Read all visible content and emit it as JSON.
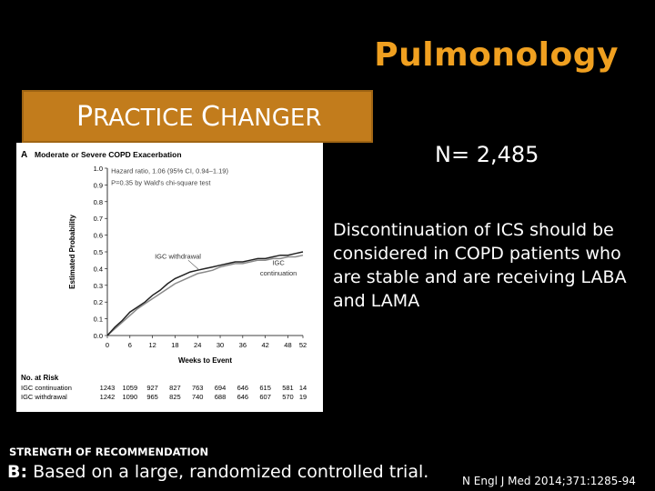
{
  "header": {
    "title": "Pulmonology"
  },
  "banner": {
    "label_initial1": "P",
    "label_rest1": "RACTICE ",
    "label_initial2": "C",
    "label_rest2": "HANGER"
  },
  "sample_size": "N= 2,485",
  "conclusion": "Discontinuation of ICS should be considered in COPD patients who are stable and are receiving LABA and LAMA",
  "recommendation": {
    "heading": "STRENGTH OF RECOMMENDATION",
    "grade": "B:",
    "text": " Based on a large, randomized controlled trial."
  },
  "reference": "N Engl J Med 2014;371:1285-94",
  "chart_data": {
    "type": "line",
    "panel_letter": "A",
    "title": "Moderate or Severe COPD Exacerbation",
    "annotation_line1": "Hazard ratio, 1.06 (95% CI, 0.94–1.19)",
    "annotation_line2": "P=0.35 by Wald's chi-square test",
    "xlabel": "Weeks to Event",
    "ylabel": "Estimated Probability",
    "xlim": [
      0,
      52
    ],
    "ylim": [
      0,
      1.0
    ],
    "x_ticks": [
      0,
      6,
      12,
      18,
      24,
      30,
      36,
      42,
      48,
      52
    ],
    "x_tick_labels": [
      "0",
      "6",
      "12",
      "18",
      "24",
      "30",
      "36",
      "42",
      "48",
      "52"
    ],
    "y_ticks": [
      0,
      0.1,
      0.2,
      0.3,
      0.4,
      0.5,
      0.6,
      0.7,
      0.8,
      0.9,
      1.0
    ],
    "y_tick_labels": [
      "0.0",
      "0.1",
      "0.2",
      "0.3",
      "0.4",
      "0.5",
      "0.6",
      "0.7",
      "0.8",
      "0.9",
      "1.0"
    ],
    "series": [
      {
        "name": "IGC withdrawal",
        "color": "#222222",
        "x": [
          0,
          2,
          4,
          6,
          8,
          10,
          12,
          14,
          16,
          18,
          20,
          22,
          24,
          26,
          28,
          30,
          32,
          34,
          36,
          38,
          40,
          42,
          44,
          46,
          48,
          50,
          52
        ],
        "y": [
          0,
          0.05,
          0.09,
          0.14,
          0.17,
          0.2,
          0.24,
          0.27,
          0.31,
          0.34,
          0.36,
          0.38,
          0.39,
          0.4,
          0.41,
          0.42,
          0.43,
          0.44,
          0.44,
          0.45,
          0.46,
          0.46,
          0.47,
          0.48,
          0.48,
          0.49,
          0.5
        ]
      },
      {
        "name": "IGC continuation",
        "color": "#8a8a8a",
        "x": [
          0,
          2,
          4,
          6,
          8,
          10,
          12,
          14,
          16,
          18,
          20,
          22,
          24,
          26,
          28,
          30,
          32,
          34,
          36,
          38,
          40,
          42,
          44,
          46,
          48,
          50,
          52
        ],
        "y": [
          0,
          0.04,
          0.08,
          0.12,
          0.16,
          0.19,
          0.22,
          0.25,
          0.28,
          0.31,
          0.33,
          0.35,
          0.37,
          0.38,
          0.39,
          0.41,
          0.42,
          0.43,
          0.43,
          0.44,
          0.45,
          0.45,
          0.46,
          0.46,
          0.47,
          0.47,
          0.48
        ]
      }
    ],
    "risk_table": {
      "heading": "No. at Risk",
      "rows": [
        {
          "label": "IGC continuation",
          "values": [
            "1243",
            "1059",
            "927",
            "827",
            "763",
            "694",
            "646",
            "615",
            "581",
            "14"
          ]
        },
        {
          "label": "IGC withdrawal",
          "values": [
            "1242",
            "1090",
            "965",
            "825",
            "740",
            "688",
            "646",
            "607",
            "570",
            "19"
          ]
        }
      ]
    }
  }
}
